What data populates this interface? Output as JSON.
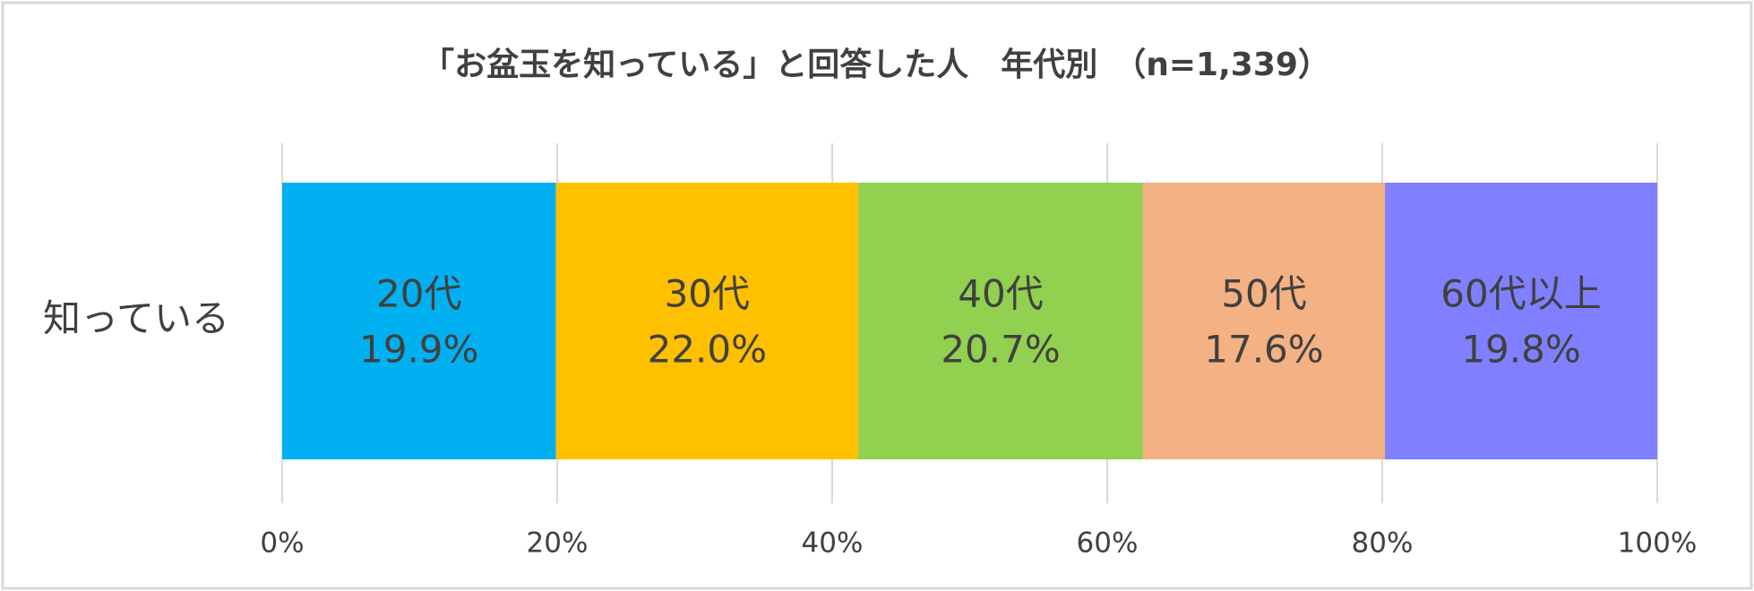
{
  "chart_data": {
    "type": "stacked-bar",
    "orientation": "horizontal",
    "title": "「お盆玉を知っている」と回答した人　年代別　（n=1,339）",
    "categories": [
      "知っている"
    ],
    "series": [
      {
        "name": "20代",
        "color": "#00b0f0",
        "values": [
          19.9
        ],
        "value_labels": [
          "19.9%"
        ]
      },
      {
        "name": "30代",
        "color": "#ffc000",
        "values": [
          22.0
        ],
        "value_labels": [
          "22.0%"
        ]
      },
      {
        "name": "40代",
        "color": "#92d050",
        "values": [
          20.7
        ],
        "value_labels": [
          "20.7%"
        ]
      },
      {
        "name": "50代",
        "color": "#f4b183",
        "values": [
          17.6
        ],
        "value_labels": [
          "17.6%"
        ]
      },
      {
        "name": "60代以上",
        "color": "#7f7fff",
        "values": [
          19.8
        ],
        "value_labels": [
          "19.8%"
        ]
      }
    ],
    "xlim": [
      0,
      100
    ],
    "xticks": [
      {
        "value": 0,
        "label": "0%"
      },
      {
        "value": 20,
        "label": "20%"
      },
      {
        "value": 40,
        "label": "40%"
      },
      {
        "value": 60,
        "label": "60%"
      },
      {
        "value": 80,
        "label": "80%"
      },
      {
        "value": 100,
        "label": "100%"
      }
    ],
    "grid": true
  }
}
